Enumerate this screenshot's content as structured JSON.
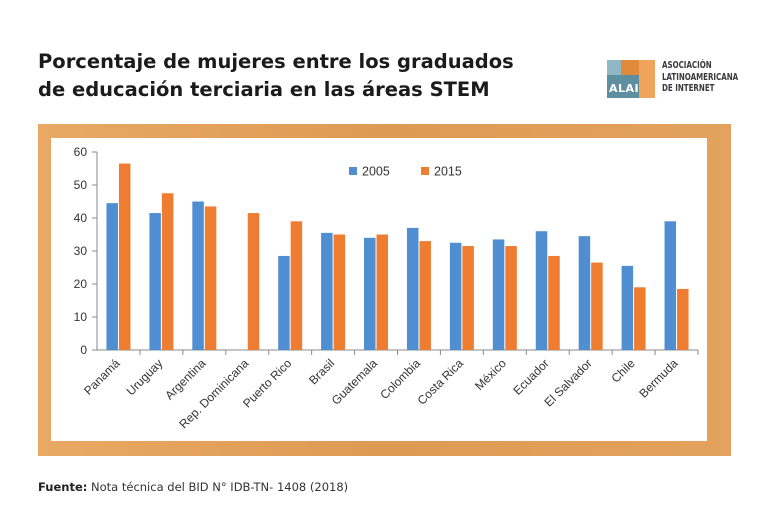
{
  "header": {
    "title_line1": "Porcentaje de mujeres entre los graduados",
    "title_line2": "de educación terciaria en las áreas STEM"
  },
  "logo": {
    "mark_text": "ALAI",
    "line1": "ASOCIACIÓN",
    "line2": "LATINOAMERICANA",
    "line3": "DE INTERNET",
    "colors": [
      "#8fb8c4",
      "#e18a3b",
      "#5d8fa0",
      "#f0a35a"
    ]
  },
  "footer": {
    "source_label": "Fuente:",
    "source_text": "Nota técnica del BID N° IDB-TN- 1408 (2018)"
  },
  "chart_data": {
    "type": "bar",
    "categories": [
      "Panamá",
      "Uruguay",
      "Argentina",
      "Rep. Dominicana",
      "Puerto Rico",
      "Brasil",
      "Guatemala",
      "Colombia",
      "Costa Rica",
      "México",
      "Ecuador",
      "El Salvador",
      "Chile",
      "Bermuda"
    ],
    "series": [
      {
        "name": "2005",
        "color": "#4f8fd1",
        "values": [
          44.5,
          41.5,
          45,
          null,
          28.5,
          35.5,
          34,
          37,
          32.5,
          33.5,
          36,
          34.5,
          25.5,
          39
        ]
      },
      {
        "name": "2015",
        "color": "#ef7d31",
        "values": [
          56.5,
          47.5,
          43.5,
          41.5,
          39,
          35,
          35,
          33,
          31.5,
          31.5,
          28.5,
          26.5,
          19,
          18.5
        ]
      }
    ],
    "ylim": [
      0,
      60
    ],
    "yticks": [
      0,
      10,
      20,
      30,
      40,
      50,
      60
    ],
    "grid": false,
    "legend": "top-center"
  }
}
